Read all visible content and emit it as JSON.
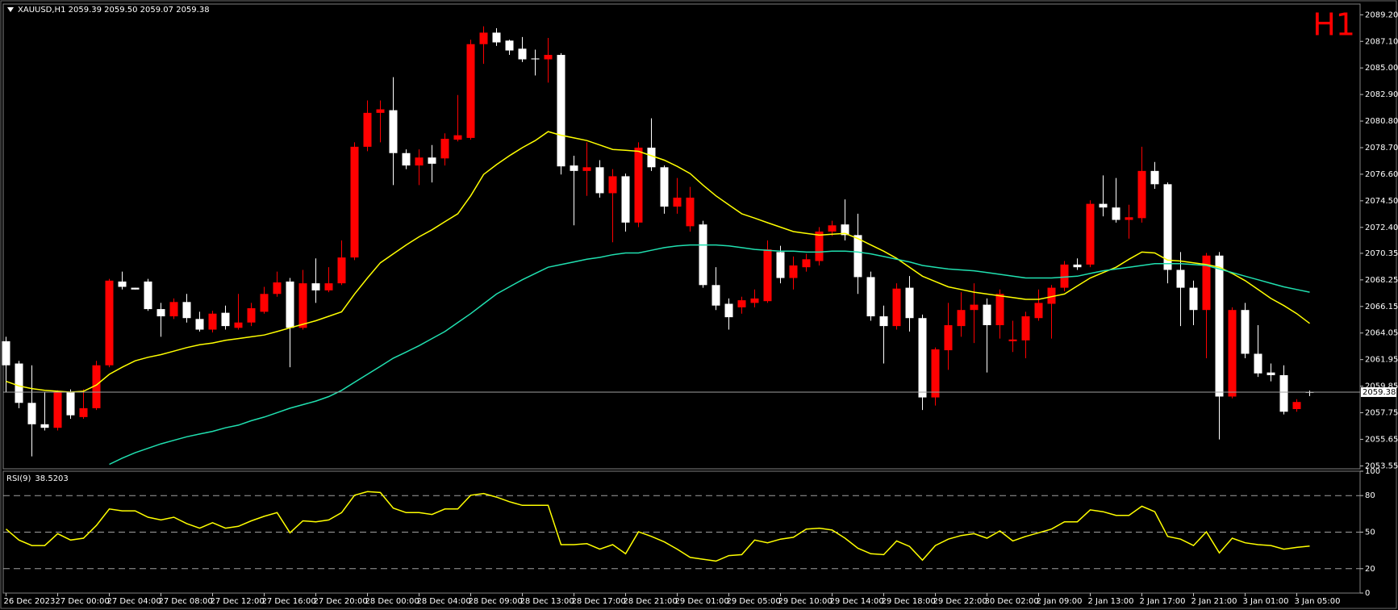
{
  "chart_data": [
    {
      "type": "candlestick",
      "title": "XAUUSD,H1  2059.39 2059.50 2059.07 2059.38",
      "annotation": "H1",
      "categories": [
        "26 Dec 2023",
        null,
        null,
        null,
        "27 Dec 00:00",
        null,
        null,
        null,
        "27 Dec 04:00",
        null,
        null,
        null,
        "27 Dec 08:00",
        null,
        null,
        null,
        "27 Dec 12:00",
        null,
        null,
        null,
        "27 Dec 16:00",
        null,
        null,
        null,
        "27 Dec 20:00",
        null,
        null,
        null,
        "28 Dec 00:00",
        null,
        null,
        null,
        "28 Dec 04:00",
        null,
        null,
        null,
        "28 Dec 09:00",
        null,
        null,
        null,
        "28 Dec 13:00",
        null,
        null,
        null,
        "28 Dec 17:00",
        null,
        null,
        null,
        "28 Dec 21:00",
        null,
        null,
        null,
        "29 Dec 01:00",
        null,
        null,
        null,
        "29 Dec 05:00",
        null,
        null,
        null,
        "29 Dec 10:00",
        null,
        null,
        null,
        "29 Dec 14:00",
        null,
        null,
        null,
        "29 Dec 18:00",
        null,
        null,
        null,
        "29 Dec 22:00",
        null,
        null,
        null,
        "30 Dec 02:00",
        null,
        null,
        null,
        "2 Jan 09:00",
        null,
        null,
        null,
        "2 Jan 13:00",
        null,
        null,
        null,
        "2 Jan 17:00",
        null,
        null,
        null,
        "2 Jan 21:00",
        null,
        null,
        null,
        "3 Jan 01:00",
        null,
        null,
        null,
        "3 Jan 05:00",
        null
      ],
      "open": [
        2063.4,
        2061.64,
        2058.53,
        2056.84,
        2056.56,
        2059.38,
        2057.41,
        2058.11,
        2061.5,
        2068.12,
        2067.63,
        2068.12,
        2065.94,
        2065.37,
        2066.5,
        2065.16,
        2064.32,
        2065.65,
        2064.46,
        2064.88,
        2065.73,
        2067.14,
        2068.12,
        2064.46,
        2067.98,
        2067.42,
        2067.98,
        2070.02,
        2078.77,
        2081.45,
        2081.66,
        2078.27,
        2077.29,
        2077.92,
        2077.85,
        2079.33,
        2079.47,
        2086.88,
        2087.79,
        2087.16,
        2086.52,
        2085.75,
        2085.68,
        2086.03,
        2077.29,
        2076.86,
        2077.15,
        2075.1,
        2076.44,
        2072.78,
        2078.7,
        2077.15,
        2074.04,
        2072.49,
        2072.63,
        2067.84,
        2066.36,
        2066.08,
        2066.43,
        2066.57,
        2070.45,
        2068.4,
        2069.25,
        2069.74,
        2072.07,
        2072.63,
        2071.79,
        2068.47,
        2065.37,
        2064.6,
        2067.63,
        2065.23,
        2058.96,
        2062.69,
        2064.6,
        2065.87,
        2066.29,
        2064.67,
        2063.4,
        2063.47,
        2065.23,
        2066.36,
        2067.63,
        2069.46,
        2069.46,
        2074.26,
        2073.97,
        2072.99,
        2073.13,
        2076.86,
        2075.81,
        2069.04,
        2067.63,
        2065.87,
        2070.17,
        2059.03,
        2065.87,
        2062.41,
        2060.93,
        2060.72,
        2058.04,
        2059.39
      ],
      "high": [
        2063.75,
        2061.85,
        2061.5,
        2059.38,
        2059.52,
        2059.59,
        2059.59,
        2061.85,
        2068.33,
        2068.9,
        2067.63,
        2068.33,
        2066.43,
        2066.78,
        2067.14,
        2065.73,
        2065.8,
        2066.22,
        2067.14,
        2066.43,
        2067.7,
        2068.9,
        2068.4,
        2069.04,
        2069.95,
        2069.25,
        2071.37,
        2079.12,
        2082.43,
        2082.43,
        2084.27,
        2078.56,
        2078.56,
        2078.91,
        2079.83,
        2082.86,
        2087.23,
        2088.29,
        2088.14,
        2087.23,
        2087.44,
        2086.45,
        2087.37,
        2086.17,
        2078.06,
        2079.12,
        2077.71,
        2077.0,
        2076.65,
        2079.12,
        2081.02,
        2077.29,
        2076.3,
        2075.6,
        2072.92,
        2069.25,
        2066.78,
        2066.92,
        2067.49,
        2071.37,
        2070.94,
        2070.1,
        2070.31,
        2072.42,
        2072.92,
        2074.61,
        2073.48,
        2068.9,
        2066.22,
        2067.98,
        2068.55,
        2065.51,
        2062.91,
        2066.43,
        2067.28,
        2067.98,
        2066.78,
        2067.49,
        2065.02,
        2065.73,
        2067.49,
        2067.84,
        2069.74,
        2069.95,
        2074.54,
        2076.51,
        2076.3,
        2074.19,
        2078.77,
        2077.57,
        2075.95,
        2070.45,
        2068.19,
        2070.38,
        2070.45,
        2066.08,
        2066.43,
        2064.67,
        2061.64,
        2061.5,
        2058.82,
        2059.5
      ],
      "low": [
        2059.4,
        2058.11,
        2054.3,
        2056.35,
        2056.35,
        2057.27,
        2057.27,
        2057.97,
        2061.35,
        2067.49,
        2067.49,
        2065.8,
        2063.75,
        2065.16,
        2064.88,
        2064.17,
        2064.1,
        2064.32,
        2064.32,
        2064.6,
        2065.58,
        2066.92,
        2061.35,
        2064.32,
        2066.43,
        2067.28,
        2067.84,
        2069.81,
        2078.42,
        2079.12,
        2075.74,
        2077.0,
        2075.74,
        2075.95,
        2077.29,
        2079.19,
        2079.33,
        2085.32,
        2086.74,
        2086.03,
        2085.47,
        2084.41,
        2083.84,
        2076.58,
        2072.56,
        2074.89,
        2074.75,
        2071.22,
        2072.07,
        2072.42,
        2076.86,
        2073.48,
        2073.48,
        2072.07,
        2067.63,
        2065.87,
        2064.32,
        2065.58,
        2066.08,
        2066.43,
        2067.98,
        2067.49,
        2068.9,
        2069.39,
        2071.72,
        2071.37,
        2067.14,
        2065.02,
        2061.64,
        2064.32,
        2064.17,
        2057.97,
        2058.32,
        2061.14,
        2063.75,
        2063.26,
        2060.93,
        2063.61,
        2062.55,
        2062.06,
        2065.02,
        2063.61,
        2067.35,
        2069.04,
        2069.25,
        2073.27,
        2072.78,
        2071.51,
        2072.78,
        2075.45,
        2067.98,
        2064.6,
        2064.67,
        2062.06,
        2055.64,
        2058.89,
        2062.06,
        2060.58,
        2060.23,
        2057.62,
        2057.83,
        2059.07
      ],
      "close": [
        2061.5,
        2058.53,
        2056.84,
        2056.56,
        2059.38,
        2057.55,
        2058.11,
        2061.5,
        2068.19,
        2067.7,
        2067.49,
        2065.94,
        2065.37,
        2066.5,
        2065.23,
        2064.32,
        2065.58,
        2064.6,
        2064.88,
        2066.01,
        2067.14,
        2068.05,
        2064.46,
        2067.98,
        2067.42,
        2067.98,
        2070.02,
        2078.77,
        2081.45,
        2081.73,
        2078.27,
        2077.29,
        2077.92,
        2077.43,
        2079.4,
        2079.68,
        2086.88,
        2087.79,
        2087.02,
        2086.38,
        2085.68,
        2085.68,
        2086.03,
        2077.22,
        2076.86,
        2077.15,
        2075.1,
        2076.44,
        2072.78,
        2078.7,
        2077.15,
        2074.04,
        2074.75,
        2074.75,
        2067.84,
        2066.22,
        2065.3,
        2066.64,
        2066.78,
        2070.66,
        2068.4,
        2069.39,
        2069.88,
        2072.07,
        2072.56,
        2071.79,
        2068.47,
        2065.37,
        2064.6,
        2067.56,
        2065.23,
        2058.96,
        2062.76,
        2064.67,
        2065.87,
        2066.29,
        2064.67,
        2067.14,
        2063.54,
        2065.37,
        2066.43,
        2067.63,
        2069.46,
        2069.25,
        2074.26,
        2073.97,
        2072.99,
        2073.2,
        2076.86,
        2075.81,
        2069.04,
        2067.63,
        2065.87,
        2070.17,
        2059.03,
        2065.87,
        2062.41,
        2060.86,
        2060.72,
        2057.83,
        2058.6,
        2059.38
      ],
      "up_color": "#ff0000",
      "down_color": "#ffffff",
      "overlays": [
        {
          "color": "#ffff00",
          "values": [
            2060.23,
            2059.87,
            2059.66,
            2059.52,
            2059.45,
            2059.38,
            2059.45,
            2059.94,
            2060.79,
            2061.35,
            2061.85,
            2062.13,
            2062.34,
            2062.62,
            2062.9,
            2063.12,
            2063.26,
            2063.47,
            2063.61,
            2063.75,
            2063.89,
            2064.17,
            2064.46,
            2064.74,
            2065.02,
            2065.37,
            2065.72,
            2067.13,
            2068.4,
            2069.6,
            2070.31,
            2071.01,
            2071.65,
            2072.21,
            2072.85,
            2073.48,
            2074.89,
            2076.58,
            2077.36,
            2078.06,
            2078.7,
            2079.26,
            2079.97,
            2079.68,
            2079.47,
            2079.26,
            2078.91,
            2078.56,
            2078.49,
            2078.41,
            2078.06,
            2077.71,
            2077.22,
            2076.65,
            2075.74,
            2074.89,
            2074.18,
            2073.48,
            2073.13,
            2072.77,
            2072.42,
            2072.07,
            2071.93,
            2071.79,
            2071.86,
            2071.93,
            2071.51,
            2071.01,
            2070.52,
            2069.95,
            2069.25,
            2068.54,
            2068.12,
            2067.7,
            2067.49,
            2067.28,
            2067.13,
            2066.99,
            2066.85,
            2066.71,
            2066.71,
            2066.92,
            2067.13,
            2067.77,
            2068.4,
            2068.83,
            2069.25,
            2069.88,
            2070.45,
            2070.38,
            2069.81,
            2069.74,
            2069.6,
            2069.46,
            2069.25,
            2068.76,
            2068.19,
            2067.49,
            2066.78,
            2066.22,
            2065.58,
            2064.81
          ]
        },
        {
          "color": "#20e0b0",
          "values": [
            null,
            null,
            null,
            null,
            null,
            null,
            null,
            null,
            2053.67,
            2054.16,
            2054.59,
            2054.94,
            2055.29,
            2055.57,
            2055.85,
            2056.07,
            2056.28,
            2056.56,
            2056.77,
            2057.12,
            2057.41,
            2057.76,
            2058.11,
            2058.39,
            2058.67,
            2059.03,
            2059.52,
            2060.16,
            2060.79,
            2061.42,
            2062.06,
            2062.55,
            2063.05,
            2063.61,
            2064.17,
            2064.88,
            2065.58,
            2066.36,
            2067.13,
            2067.7,
            2068.26,
            2068.76,
            2069.25,
            2069.46,
            2069.67,
            2069.88,
            2070.03,
            2070.24,
            2070.38,
            2070.38,
            2070.59,
            2070.8,
            2070.94,
            2071.01,
            2071.01,
            2071.01,
            2070.94,
            2070.8,
            2070.66,
            2070.59,
            2070.52,
            2070.52,
            2070.45,
            2070.45,
            2070.52,
            2070.52,
            2070.45,
            2070.31,
            2070.1,
            2069.88,
            2069.67,
            2069.39,
            2069.25,
            2069.11,
            2069.04,
            2068.97,
            2068.83,
            2068.69,
            2068.54,
            2068.4,
            2068.4,
            2068.4,
            2068.47,
            2068.54,
            2068.76,
            2068.97,
            2069.11,
            2069.25,
            2069.39,
            2069.53,
            2069.53,
            2069.53,
            2069.46,
            2069.39,
            2069.11,
            2068.83,
            2068.54,
            2068.26,
            2067.98,
            2067.7,
            2067.49,
            2067.28
          ]
        }
      ],
      "price_line_color": "#a0a0a0",
      "ylim": [
        2053.32,
        2090.05
      ],
      "yticks": [
        {
          "value": 2089.2,
          "label": "2089.20"
        },
        {
          "value": 2087.1,
          "label": "2087.10"
        },
        {
          "value": 2085,
          "label": "2085.00"
        },
        {
          "value": 2082.9,
          "label": "2082.90"
        },
        {
          "value": 2080.8,
          "label": "2080.80"
        },
        {
          "value": 2078.7,
          "label": "2078.70"
        },
        {
          "value": 2076.6,
          "label": "2076.60"
        },
        {
          "value": 2074.5,
          "label": "2074.50"
        },
        {
          "value": 2072.4,
          "label": "2072.40"
        },
        2070.35,
        2068.25,
        2066.15,
        2064.05,
        2061.95,
        2059.85,
        2057.75,
        2055.65,
        2053.55
      ]
    },
    {
      "type": "line",
      "title": "RSI(9)",
      "color": "#ffff00",
      "values": [
        52.5,
        43.5,
        39,
        39,
        48.75,
        43.5,
        45,
        55.5,
        69,
        67.5,
        67.5,
        62.25,
        60,
        62.25,
        57,
        53.25,
        57.75,
        53.25,
        54.75,
        59.25,
        63,
        66,
        49.5,
        59.25,
        58.5,
        60,
        66,
        80.25,
        83.25,
        82.5,
        69.75,
        66,
        66,
        64.5,
        69,
        69,
        80.25,
        81.75,
        78.75,
        75,
        72,
        72,
        72,
        39.75,
        39.75,
        40.5,
        36,
        39.75,
        32.25,
        50.25,
        46.5,
        42,
        36,
        29.25,
        27.75,
        26.25,
        30.75,
        31.5,
        43.5,
        41.25,
        44.25,
        45.75,
        52.5,
        53.25,
        51.75,
        45,
        36.75,
        32.25,
        31.5,
        42.75,
        38.25,
        27,
        39,
        44.25,
        47.25,
        48.75,
        45,
        51,
        42.75,
        46.5,
        49.5,
        52.5,
        58.5,
        58.5,
        68.25,
        66.75,
        63.75,
        63.75,
        71.25,
        66.75,
        46.5,
        44.25,
        39,
        50.25,
        33,
        45,
        41.25,
        39.75,
        39,
        36,
        37.5,
        38.5203
      ],
      "ylim": [
        0,
        100
      ],
      "yticks": [
        0,
        20,
        50,
        80,
        100
      ],
      "grid": "dashed"
    }
  ]
}
